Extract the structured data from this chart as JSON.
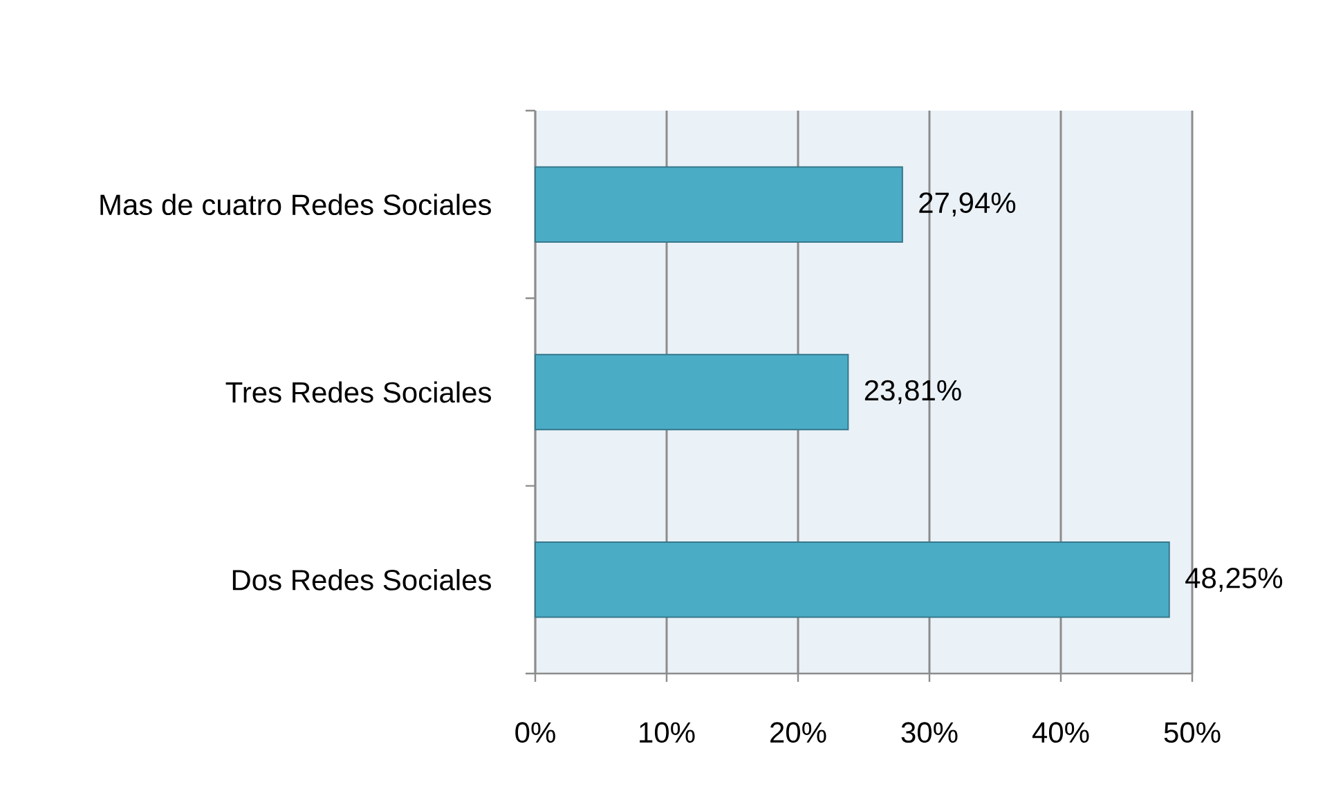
{
  "chart_data": {
    "type": "bar",
    "orientation": "horizontal",
    "categories": [
      "Mas de cuatro Redes Sociales",
      "Tres Redes Sociales",
      "Dos Redes Sociales"
    ],
    "values": [
      27.94,
      23.81,
      48.25
    ],
    "value_labels": [
      "27,94%",
      "23,81%",
      "48,25%"
    ],
    "color": "#4bacc6",
    "xlim": [
      0,
      50
    ],
    "xticks": [
      {
        "value": 0,
        "label": "0%"
      },
      {
        "value": 10,
        "label": "10%"
      },
      {
        "value": 20,
        "label": "20%"
      },
      {
        "value": 30,
        "label": "30%"
      },
      {
        "value": 40,
        "label": "40%"
      },
      {
        "value": 50,
        "label": "50%"
      }
    ],
    "grid": "x"
  }
}
